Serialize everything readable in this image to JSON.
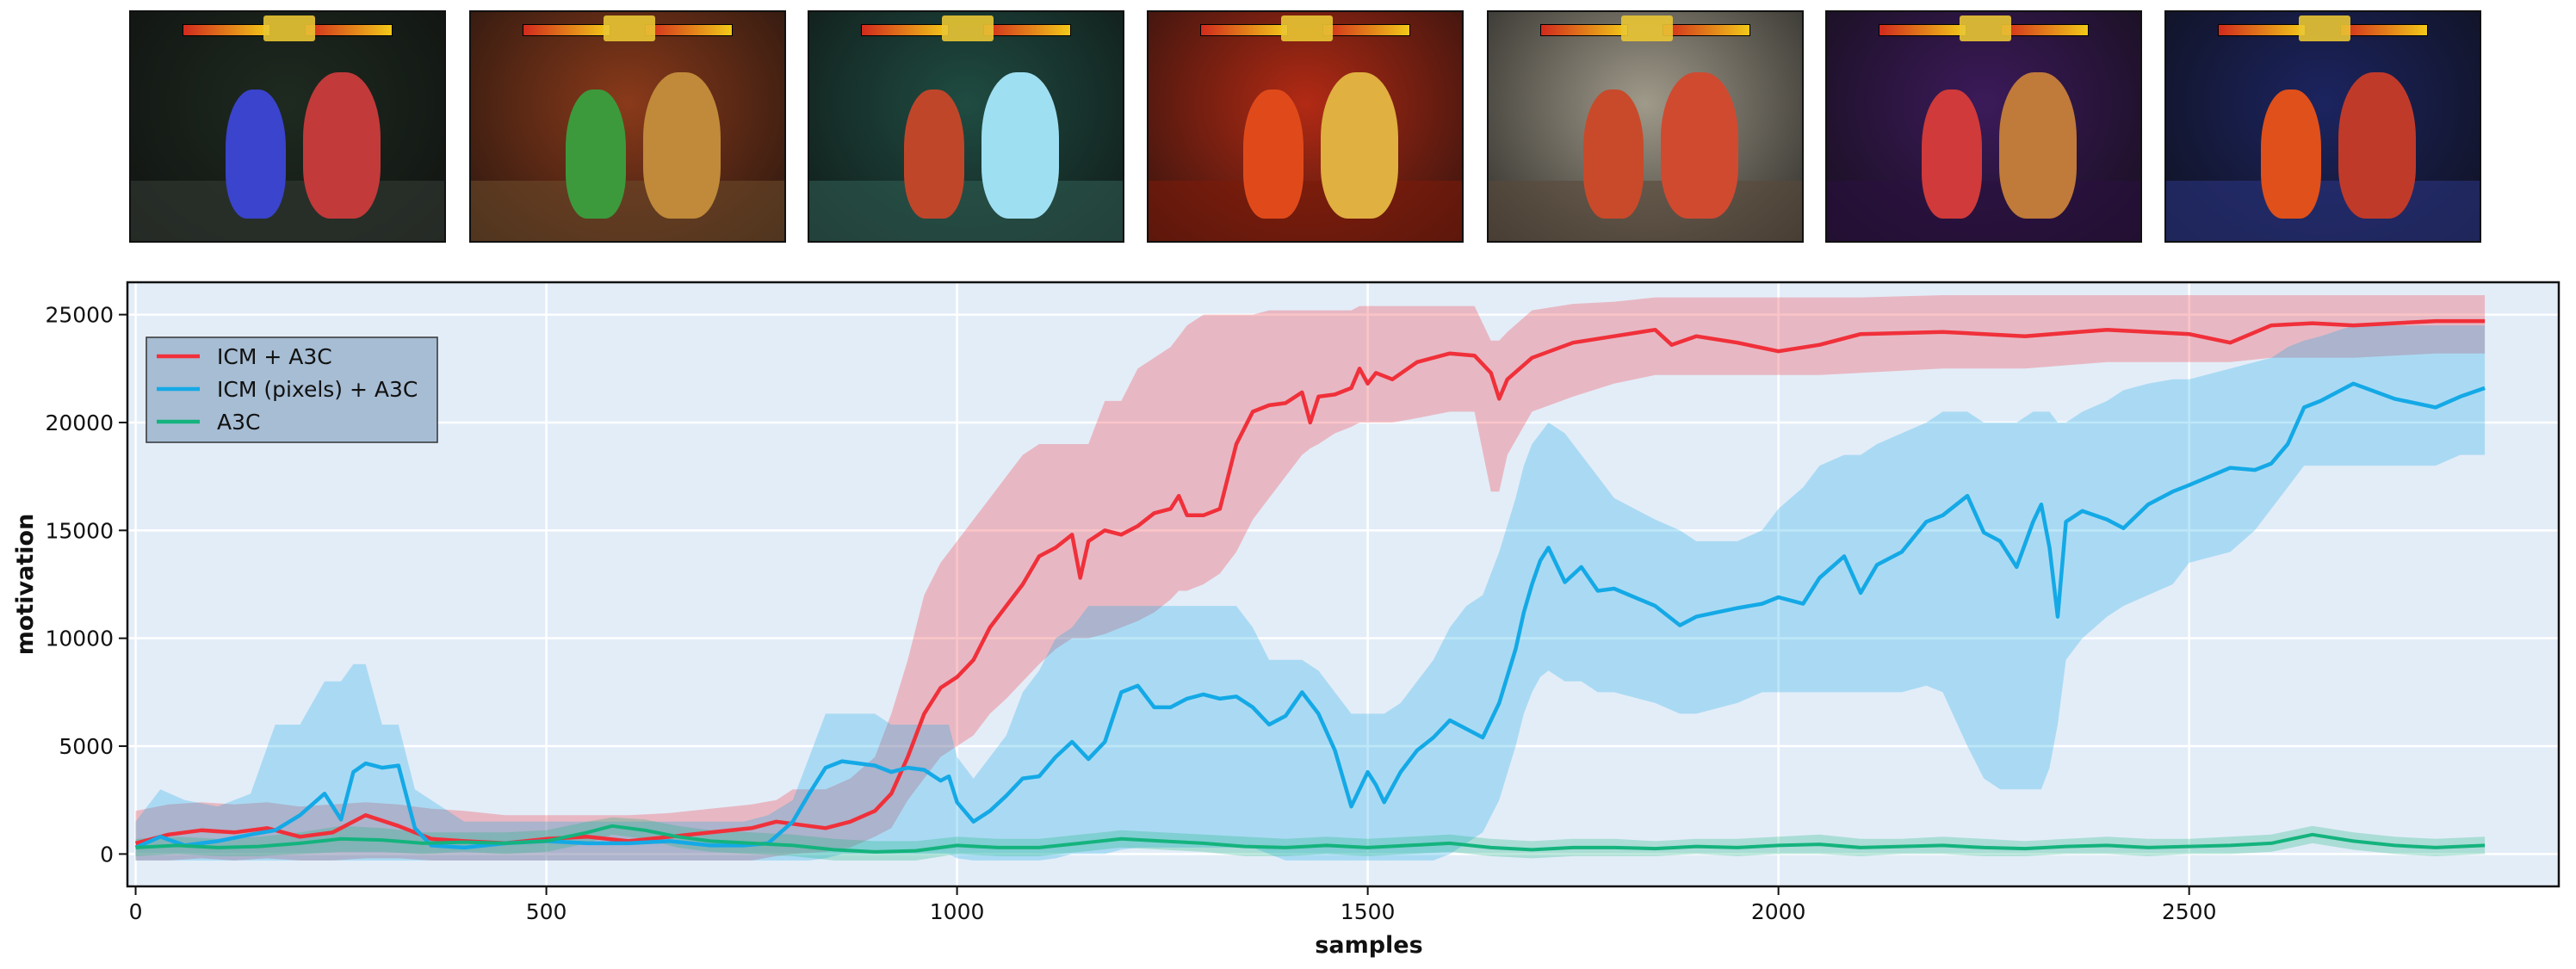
{
  "chart_data": {
    "type": "line",
    "xlabel": "samples",
    "ylabel": "motivation",
    "xlim": [
      -10,
      2950
    ],
    "ylim": [
      -1500,
      26500
    ],
    "xticks": [
      0,
      500,
      1000,
      1500,
      2000,
      2500
    ],
    "yticks": [
      0,
      5000,
      10000,
      15000,
      20000,
      25000
    ],
    "grid": true,
    "legend_position": "upper-left",
    "colors": {
      "background": "#e3edf8",
      "grid": "#ffffff",
      "ICM + A3C": "#f0303a",
      "ICM (pixels) + A3C": "#14a9e6",
      "A3C": "#14b37d"
    },
    "series": [
      {
        "name": "ICM + A3C",
        "x": [
          0,
          40,
          80,
          120,
          160,
          200,
          240,
          280,
          320,
          360,
          400,
          450,
          500,
          550,
          600,
          650,
          700,
          750,
          780,
          800,
          840,
          870,
          900,
          920,
          940,
          960,
          980,
          1000,
          1020,
          1040,
          1060,
          1080,
          1100,
          1120,
          1140,
          1150,
          1160,
          1180,
          1200,
          1220,
          1240,
          1260,
          1270,
          1280,
          1300,
          1320,
          1340,
          1360,
          1380,
          1400,
          1420,
          1430,
          1440,
          1460,
          1480,
          1490,
          1500,
          1510,
          1530,
          1560,
          1600,
          1630,
          1650,
          1660,
          1670,
          1700,
          1750,
          1800,
          1850,
          1870,
          1900,
          1950,
          2000,
          2050,
          2100,
          2200,
          2300,
          2400,
          2500,
          2550,
          2600,
          2650,
          2700,
          2800,
          2860
        ],
        "values": [
          500,
          900,
          1100,
          1000,
          1200,
          800,
          1000,
          1800,
          1300,
          700,
          600,
          500,
          700,
          800,
          600,
          800,
          1000,
          1200,
          1500,
          1400,
          1200,
          1500,
          2000,
          2800,
          4500,
          6500,
          7700,
          8200,
          9000,
          10500,
          11500,
          12500,
          13800,
          14200,
          14800,
          12800,
          14500,
          15000,
          14800,
          15200,
          15800,
          16000,
          16600,
          15700,
          15700,
          16000,
          19000,
          20500,
          20800,
          20900,
          21400,
          20000,
          21200,
          21300,
          21600,
          22500,
          21800,
          22300,
          22000,
          22800,
          23200,
          23100,
          22300,
          21100,
          22000,
          23000,
          23700,
          24000,
          24300,
          23600,
          24000,
          23700,
          23300,
          23600,
          24100,
          24200,
          24000,
          24300,
          24100,
          23700,
          24500,
          24600,
          24500,
          24700,
          24700
        ],
        "band_upper": [
          2000,
          2300,
          2400,
          2300,
          2400,
          2200,
          2300,
          2400,
          2300,
          2100,
          2000,
          1800,
          1800,
          1800,
          1800,
          1900,
          2100,
          2300,
          2500,
          3000,
          3000,
          3500,
          4500,
          6500,
          9000,
          12000,
          13500,
          14500,
          15500,
          16500,
          17500,
          18500,
          19000,
          19000,
          19000,
          19000,
          19000,
          21000,
          21000,
          22500,
          23000,
          23500,
          24000,
          24500,
          25000,
          25000,
          25000,
          25000,
          25200,
          25200,
          25200,
          25200,
          25200,
          25200,
          25200,
          25400,
          25400,
          25400,
          25400,
          25400,
          25400,
          25400,
          23800,
          23800,
          24200,
          25200,
          25500,
          25600,
          25800,
          25800,
          25800,
          25800,
          25800,
          25800,
          25800,
          25900,
          25900,
          25900,
          25900,
          25900,
          25900,
          25900,
          25900,
          25900,
          25900
        ],
        "band_lower": [
          -300,
          -300,
          -200,
          -300,
          -200,
          -300,
          -300,
          -200,
          -200,
          -300,
          -300,
          -300,
          -300,
          -300,
          -300,
          -300,
          -300,
          -300,
          -100,
          0,
          100,
          300,
          800,
          1200,
          2500,
          3500,
          4500,
          5000,
          5500,
          6500,
          7200,
          8000,
          8800,
          9500,
          10000,
          10000,
          10000,
          10200,
          10500,
          10800,
          11200,
          11800,
          12200,
          12200,
          12500,
          13000,
          14000,
          15500,
          16500,
          17500,
          18500,
          18800,
          19000,
          19500,
          19800,
          20000,
          20000,
          20000,
          20000,
          20200,
          20500,
          20500,
          16800,
          16800,
          18500,
          20500,
          21200,
          21800,
          22200,
          22200,
          22200,
          22200,
          22200,
          22200,
          22300,
          22500,
          22500,
          22800,
          22800,
          22800,
          23000,
          23000,
          23000,
          23200,
          23200
        ]
      },
      {
        "name": "ICM (pixels) + A3C",
        "x": [
          0,
          30,
          60,
          100,
          140,
          170,
          200,
          230,
          250,
          265,
          280,
          300,
          320,
          340,
          360,
          400,
          450,
          500,
          550,
          600,
          650,
          700,
          740,
          770,
          800,
          820,
          840,
          860,
          880,
          900,
          920,
          940,
          960,
          980,
          990,
          1000,
          1020,
          1040,
          1060,
          1080,
          1100,
          1120,
          1140,
          1160,
          1180,
          1200,
          1220,
          1240,
          1260,
          1280,
          1300,
          1320,
          1340,
          1360,
          1380,
          1400,
          1420,
          1440,
          1460,
          1480,
          1500,
          1510,
          1520,
          1540,
          1560,
          1580,
          1600,
          1620,
          1640,
          1660,
          1680,
          1690,
          1700,
          1710,
          1720,
          1740,
          1760,
          1780,
          1800,
          1850,
          1880,
          1900,
          1950,
          1980,
          2000,
          2030,
          2050,
          2080,
          2100,
          2120,
          2150,
          2180,
          2200,
          2230,
          2250,
          2270,
          2290,
          2310,
          2320,
          2330,
          2340,
          2350,
          2370,
          2400,
          2420,
          2450,
          2480,
          2500,
          2550,
          2580,
          2600,
          2620,
          2640,
          2660,
          2700,
          2750,
          2800,
          2830,
          2860
        ],
        "values": [
          300,
          800,
          400,
          600,
          900,
          1100,
          1800,
          2800,
          1600,
          3800,
          4200,
          4000,
          4100,
          1200,
          400,
          300,
          500,
          600,
          500,
          500,
          600,
          400,
          400,
          500,
          1500,
          2800,
          4000,
          4300,
          4200,
          4100,
          3800,
          4000,
          3900,
          3400,
          3600,
          2400,
          1500,
          2000,
          2700,
          3500,
          3600,
          4500,
          5200,
          4400,
          5200,
          7500,
          7800,
          6800,
          6800,
          7200,
          7400,
          7200,
          7300,
          6800,
          6000,
          6400,
          7500,
          6500,
          4800,
          2200,
          3800,
          3200,
          2400,
          3800,
          4800,
          5400,
          6200,
          5800,
          5400,
          7000,
          9500,
          11200,
          12500,
          13600,
          14200,
          12600,
          13300,
          12200,
          12300,
          11500,
          10600,
          11000,
          11400,
          11600,
          11900,
          11600,
          12800,
          13800,
          12100,
          13400,
          14000,
          15400,
          15700,
          16600,
          14900,
          14500,
          13300,
          15400,
          16200,
          14200,
          11000,
          15400,
          15900,
          15500,
          15100,
          16200,
          16800,
          17100,
          17900,
          17800,
          18100,
          19000,
          20700,
          21000,
          21800,
          21100,
          20700,
          21200,
          21600
        ],
        "band_upper": [
          1500,
          3000,
          2500,
          2200,
          2800,
          6000,
          6000,
          8000,
          8000,
          8800,
          8800,
          6000,
          6000,
          3000,
          2500,
          1500,
          1500,
          1500,
          1500,
          1500,
          1500,
          1500,
          1500,
          1800,
          2500,
          4500,
          6500,
          6500,
          6500,
          6500,
          6000,
          6000,
          6000,
          6000,
          6000,
          4500,
          3500,
          4500,
          5500,
          7500,
          8500,
          10000,
          10500,
          11500,
          11500,
          11500,
          11500,
          11500,
          11500,
          11500,
          11500,
          11500,
          11500,
          10500,
          9000,
          9000,
          9000,
          8500,
          7500,
          6500,
          6500,
          6500,
          6500,
          7000,
          8000,
          9000,
          10500,
          11500,
          12000,
          14000,
          16500,
          18000,
          19000,
          19500,
          20000,
          19500,
          18500,
          17500,
          16500,
          15500,
          15000,
          14500,
          14500,
          15000,
          16000,
          17000,
          18000,
          18500,
          18500,
          19000,
          19500,
          20000,
          20500,
          20500,
          20000,
          20000,
          20000,
          20500,
          20500,
          20500,
          20000,
          20000,
          20500,
          21000,
          21500,
          21800,
          22000,
          22000,
          22500,
          22800,
          23000,
          23500,
          23800,
          24000,
          24500,
          24500,
          24500,
          24500,
          24500
        ],
        "band_lower": [
          -300,
          -300,
          -300,
          -300,
          -300,
          -300,
          -300,
          -300,
          -300,
          -300,
          -300,
          -300,
          -300,
          -300,
          -300,
          -300,
          -300,
          -300,
          -300,
          -300,
          -300,
          -300,
          -300,
          -300,
          -300,
          -300,
          -200,
          0,
          0,
          0,
          0,
          0,
          0,
          0,
          0,
          -200,
          -300,
          -300,
          -300,
          -300,
          -300,
          -200,
          0,
          0,
          0,
          200,
          300,
          300,
          300,
          300,
          300,
          300,
          300,
          300,
          0,
          -300,
          -300,
          -300,
          -300,
          -300,
          -300,
          -300,
          -300,
          -300,
          -300,
          -300,
          0,
          500,
          1000,
          2500,
          5000,
          6500,
          7500,
          8200,
          8500,
          8000,
          8000,
          7500,
          7500,
          7000,
          6500,
          6500,
          7000,
          7500,
          7500,
          7500,
          7500,
          7500,
          7500,
          7500,
          7500,
          7800,
          7500,
          5000,
          3500,
          3000,
          3000,
          3000,
          3000,
          4000,
          6000,
          9000,
          10000,
          11000,
          11500,
          12000,
          12500,
          13500,
          14000,
          15000,
          16000,
          17000,
          18000,
          18000,
          18000,
          18000,
          18000,
          18500,
          18500
        ]
      },
      {
        "name": "A3C",
        "x": [
          0,
          50,
          100,
          150,
          200,
          250,
          300,
          350,
          400,
          450,
          500,
          550,
          580,
          620,
          660,
          700,
          750,
          800,
          850,
          900,
          950,
          1000,
          1050,
          1100,
          1150,
          1200,
          1250,
          1300,
          1350,
          1400,
          1450,
          1500,
          1550,
          1600,
          1650,
          1700,
          1750,
          1800,
          1850,
          1900,
          1950,
          2000,
          2050,
          2100,
          2150,
          2200,
          2250,
          2300,
          2350,
          2400,
          2450,
          2500,
          2550,
          2600,
          2650,
          2700,
          2750,
          2800,
          2860
        ],
        "values": [
          300,
          400,
          300,
          350,
          500,
          700,
          650,
          500,
          550,
          500,
          600,
          1000,
          1300,
          1100,
          800,
          600,
          500,
          400,
          200,
          100,
          150,
          400,
          300,
          300,
          500,
          700,
          600,
          500,
          350,
          300,
          400,
          300,
          400,
          500,
          300,
          200,
          300,
          300,
          250,
          350,
          300,
          400,
          450,
          300,
          350,
          400,
          300,
          250,
          350,
          400,
          300,
          350,
          400,
          500,
          900,
          600,
          400,
          300,
          400
        ],
        "band_upper": [
          700,
          800,
          700,
          800,
          1000,
          1300,
          1200,
          1000,
          1000,
          1000,
          1100,
          1500,
          1700,
          1600,
          1300,
          1100,
          1000,
          900,
          700,
          600,
          600,
          800,
          700,
          700,
          900,
          1100,
          1000,
          900,
          800,
          700,
          800,
          700,
          800,
          900,
          700,
          600,
          700,
          700,
          600,
          700,
          700,
          800,
          900,
          700,
          700,
          800,
          700,
          600,
          700,
          800,
          700,
          700,
          800,
          900,
          1300,
          1000,
          800,
          700,
          800
        ],
        "band_lower": [
          -100,
          0,
          -100,
          -100,
          0,
          100,
          100,
          0,
          100,
          0,
          100,
          500,
          900,
          700,
          300,
          100,
          0,
          -100,
          -300,
          -300,
          -300,
          0,
          -100,
          -100,
          100,
          300,
          200,
          100,
          -100,
          -100,
          0,
          -100,
          0,
          100,
          -100,
          -200,
          -100,
          -100,
          -100,
          0,
          -100,
          0,
          0,
          -100,
          0,
          0,
          -100,
          -100,
          0,
          0,
          -100,
          0,
          0,
          100,
          500,
          200,
          0,
          -100,
          0
        ]
      }
    ]
  },
  "frames": [
    {
      "bg": "#1e2a20",
      "floor": "#333a33",
      "fig1": "#3a44cc",
      "fig2": "#c23a3a"
    },
    {
      "bg": "#8a3a1a",
      "floor": "#6a4a2a",
      "fig1": "#3c9a3c",
      "fig2": "#c08a3a"
    },
    {
      "bg": "#1f4c42",
      "floor": "#2f5c52",
      "fig1": "#c0462a",
      "fig2": "#9fdff2"
    },
    {
      "bg": "#b22a14",
      "floor": "#7a1a0a",
      "fig1": "#e04a1a",
      "fig2": "#e0b040"
    },
    {
      "bg": "#a09a8a",
      "floor": "#5a4a3a",
      "fig1": "#c84a2a",
      "fig2": "#d04a30"
    },
    {
      "bg": "#3c1a5a",
      "floor": "#2a1040",
      "fig1": "#d03a3a",
      "fig2": "#c07a3a"
    },
    {
      "bg": "#1c2460",
      "floor": "#2a3480",
      "fig1": "#e0501a",
      "fig2": "#c03a2a"
    }
  ]
}
